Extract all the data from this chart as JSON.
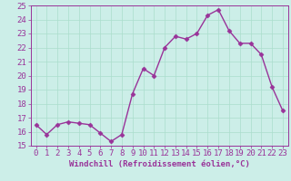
{
  "x": [
    0,
    1,
    2,
    3,
    4,
    5,
    6,
    7,
    8,
    9,
    10,
    11,
    12,
    13,
    14,
    15,
    16,
    17,
    18,
    19,
    20,
    21,
    22,
    23
  ],
  "y": [
    16.5,
    15.8,
    16.5,
    16.7,
    16.6,
    16.5,
    15.9,
    15.3,
    15.8,
    18.7,
    20.5,
    20.0,
    22.0,
    22.8,
    22.6,
    23.0,
    24.3,
    24.7,
    23.2,
    22.3,
    22.3,
    21.5,
    19.2,
    17.5
  ],
  "line_color": "#993399",
  "marker": "D",
  "markersize": 2.5,
  "linewidth": 1.0,
  "xlabel": "Windchill (Refroidissement éolien,°C)",
  "xlim": [
    -0.5,
    23.5
  ],
  "ylim": [
    15,
    25
  ],
  "yticks": [
    15,
    16,
    17,
    18,
    19,
    20,
    21,
    22,
    23,
    24,
    25
  ],
  "xticks": [
    0,
    1,
    2,
    3,
    4,
    5,
    6,
    7,
    8,
    9,
    10,
    11,
    12,
    13,
    14,
    15,
    16,
    17,
    18,
    19,
    20,
    21,
    22,
    23
  ],
  "bg_color": "#cceee8",
  "grid_color": "#aaddcc",
  "xlabel_color": "#993399",
  "tick_color": "#993399",
  "xlabel_fontsize": 6.5,
  "tick_fontsize": 6.5
}
